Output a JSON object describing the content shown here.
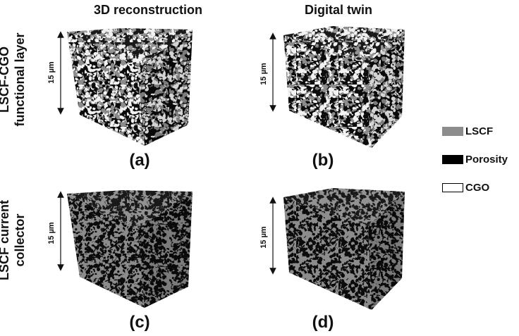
{
  "column_titles": [
    "3D reconstruction",
    "Digital twin"
  ],
  "row_labels": [
    [
      "LSCF-CGO",
      "functional layer"
    ],
    [
      "LSCF current",
      "collector"
    ]
  ],
  "scale_label": "15 µm",
  "panel_letters": [
    "(a)",
    "(b)",
    "(c)",
    "(d)"
  ],
  "legend": [
    {
      "label": "LSCF",
      "color": "#8c8c8c"
    },
    {
      "label": "Porosity",
      "color": "#000000"
    },
    {
      "label": "CGO",
      "color": "#ffffff"
    }
  ],
  "phase_colors": {
    "lscf": "#8c8c8c",
    "pore": "#0b0b0b",
    "cgo": "#f2f2f2"
  }
}
